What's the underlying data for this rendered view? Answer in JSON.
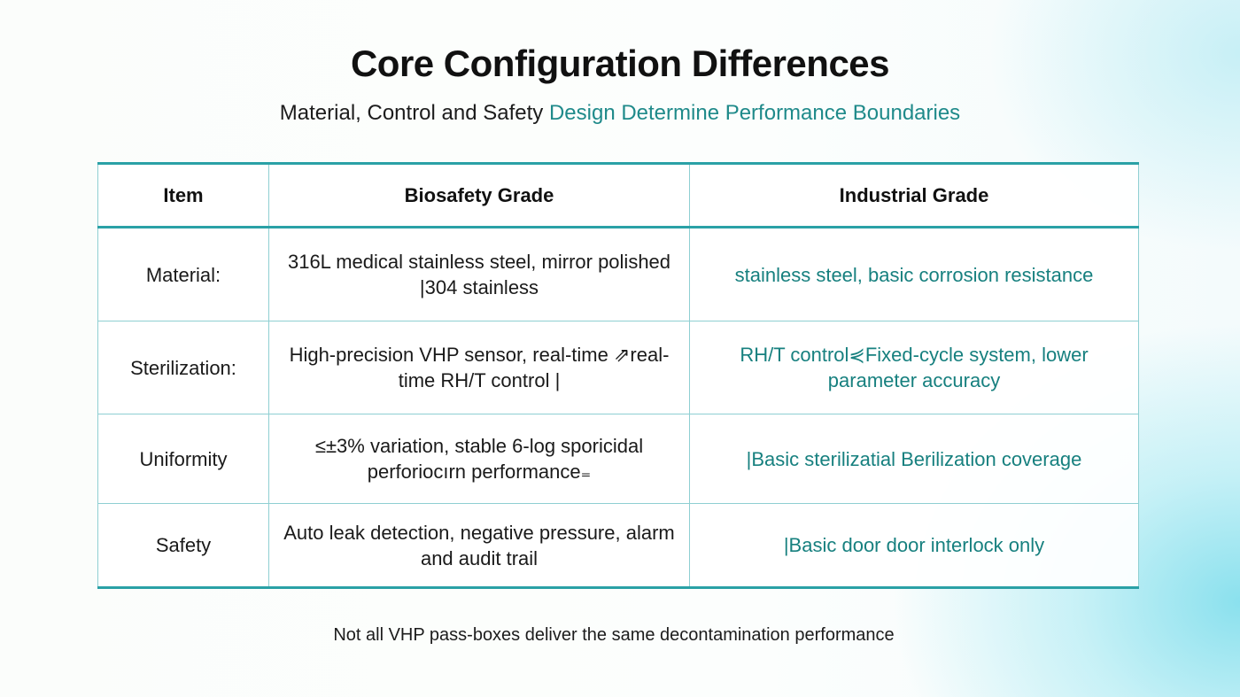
{
  "title": "Core Configuration Differences",
  "subtitle": {
    "part1": "Material, Control and Safety ",
    "part2": "Design Determine Performance Boundaries"
  },
  "table": {
    "headers": [
      "Item",
      "Biosafety Grade",
      "Industrial Grade"
    ],
    "rows": [
      {
        "item": "Material:",
        "biosafety": "316L medical stainless steel, mirror polished |304 stainless",
        "industrial": "stainless steel, basic corrosion resistance"
      },
      {
        "item": "Sterilization:",
        "biosafety": "High-precision VHP sensor, real-time ⇗real-time RH/T control |",
        "industrial": "RH/T control⋞Fixed-cycle system, lower parameter accuracy"
      },
      {
        "item": "Uniformity",
        "biosafety": "≤±3% variation, stable 6-log sporicidal perforiocırn performance₌",
        "industrial": "|Basic sterilizatial Berilization coverage"
      },
      {
        "item": "Safety",
        "biosafety": "Auto leak detection, negative pressure, alarm and audit trail",
        "industrial": "|Basic door door interlock only"
      }
    ]
  },
  "footnote": "Not all VHP pass-boxes deliver the same decontamination performance",
  "colors": {
    "accent": "#1f8a8a",
    "border": "#2aa1a6",
    "background_glow": "#8fe3ee"
  }
}
